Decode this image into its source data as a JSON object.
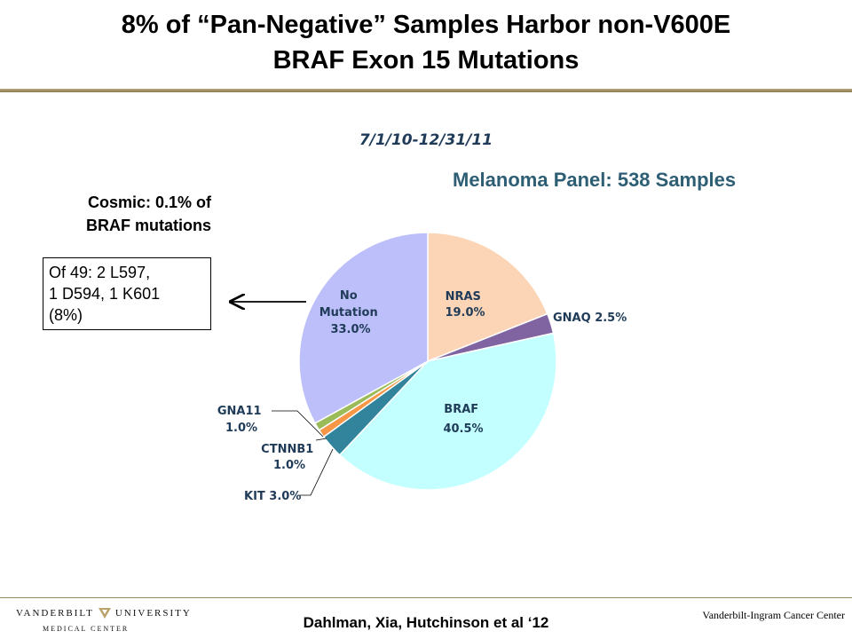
{
  "slide": {
    "title_line1": "8% of “Pan-Negative” Samples Harbor non-V600E",
    "title_line2": "BRAF Exon 15 Mutations",
    "date_range": "7/1/10-12/31/11",
    "cosmic_line1": "Cosmic: 0.1% of",
    "cosmic_line2": "BRAF mutations",
    "box_line1": "Of 49: 2 L597,",
    "box_line2": "1 D594, 1 K601",
    "box_line3": "(8%)"
  },
  "footer": {
    "logo_left": "VANDERBILT",
    "logo_right": "UNIVERSITY",
    "logo_sub": "MEDICAL CENTER",
    "citation": "Dahlman, Xia, Hutchinson et al ‘12",
    "center_name": "Vanderbilt-Ingram  Cancer Center"
  },
  "chart_data": {
    "type": "pie",
    "title": "Melanoma Panel: 538 Samples",
    "slices": [
      {
        "name": "NRAS",
        "value": 19.0,
        "pct_label": "19.0%",
        "color": "#fbd5b5"
      },
      {
        "name": "GNAQ",
        "value": 2.5,
        "pct_label": "2.5%",
        "color": "#8064a2"
      },
      {
        "name": "BRAF",
        "value": 40.5,
        "pct_label": "40.5%",
        "color": "#c3ffff"
      },
      {
        "name": "KIT",
        "value": 3.0,
        "pct_label": "3.0%",
        "color": "#31849b"
      },
      {
        "name": "CTNNB1",
        "value": 1.0,
        "pct_label": "1.0%",
        "color": "#f79646"
      },
      {
        "name": "GNA11",
        "value": 1.0,
        "pct_label": "1.0%",
        "color": "#9bbb59"
      },
      {
        "name": "No Mutation",
        "value": 33.0,
        "pct_label": "33.0%",
        "color": "#bdbffa"
      }
    ],
    "labels": {
      "nras": [
        "NRAS",
        "19.0%"
      ],
      "gnaq": "GNAQ 2.5%",
      "braf": [
        "BRAF",
        "40.5%"
      ],
      "kit": "KIT 3.0%",
      "ctnnb1": [
        "CTNNB1",
        "1.0%"
      ],
      "gna11": [
        "GNA11",
        "1.0%"
      ],
      "no_mutation": [
        "No",
        "Mutation",
        "33.0%"
      ]
    }
  }
}
